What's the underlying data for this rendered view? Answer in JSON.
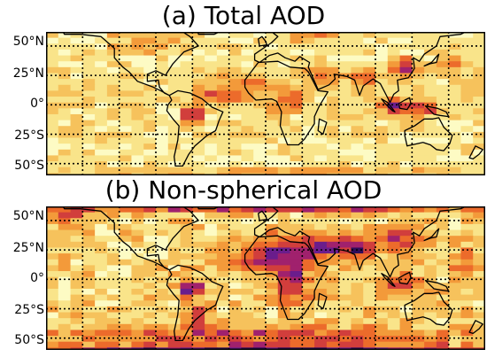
{
  "panels": [
    {
      "id": "a",
      "title": "(a) Total AOD"
    },
    {
      "id": "b",
      "title": "(b) Non-spherical AOD"
    }
  ],
  "latitude_labels": [
    "50°N",
    "25°N",
    "0°",
    "25°S",
    "50°S"
  ],
  "colormap": {
    "name": "inferno-reversed",
    "stops": [
      "#fdfbc4",
      "#f9e48a",
      "#f6c25c",
      "#f39a3a",
      "#ec6b2b",
      "#d13e3c",
      "#a0216d",
      "#6a1d8c",
      "#2e0c5a",
      "#000004"
    ]
  },
  "colors": {
    "grid": "#000000",
    "coast": "#000000",
    "text": "#000000"
  },
  "grid": {
    "style": "dotted",
    "lat_lines": [
      50,
      25,
      0,
      -25,
      -50
    ]
  }
}
